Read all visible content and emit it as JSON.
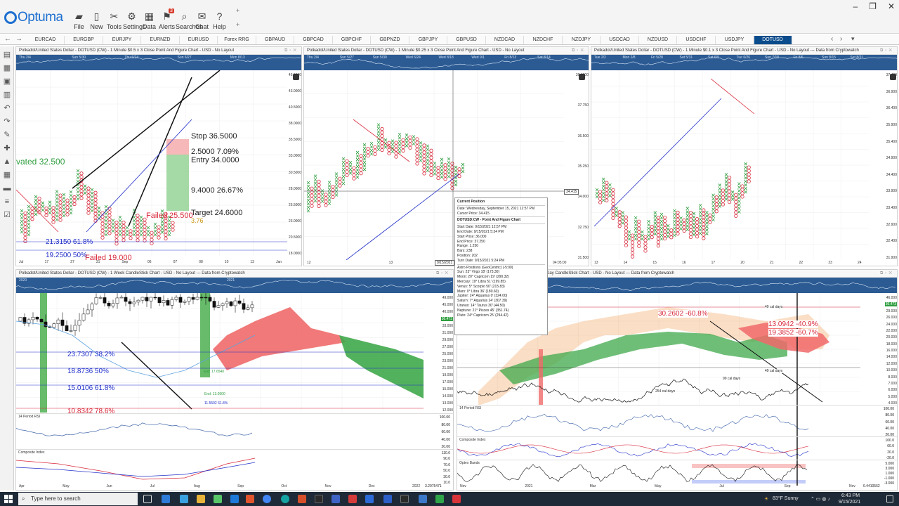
{
  "app": {
    "logo_text": "Optuma",
    "toolbar": [
      {
        "label": "File",
        "icon": "folder-icon"
      },
      {
        "label": "New",
        "icon": "page-icon"
      },
      {
        "label": "Tools",
        "icon": "tools-icon"
      },
      {
        "label": "Settings",
        "icon": "gear-icon"
      },
      {
        "label": "Data",
        "icon": "data-icon"
      },
      {
        "label": "Alerts",
        "icon": "bell-icon",
        "badge": "3"
      },
      {
        "label": "Searches",
        "icon": "search-icon"
      },
      {
        "label": "Chat",
        "icon": "chat-icon"
      },
      {
        "label": "Help",
        "icon": "help-icon"
      }
    ],
    "plus_a": "+",
    "plus_b": "+",
    "window_controls": [
      "–",
      "❐",
      "✕"
    ]
  },
  "tabs": [
    "EURCAD",
    "EURGBP",
    "EURJPY",
    "EURNZD",
    "EURUSD",
    "Forex RRG",
    "GBPAUD",
    "GBPCAD",
    "GBPCHF",
    "GBPNZD",
    "GBPJPY",
    "GBPUSD",
    "NZDCAD",
    "NZDCHF",
    "NZDJPY",
    "USDCAD",
    "NZDUSD",
    "USDCHF",
    "USDJPY",
    "DOTUSD"
  ],
  "active_tab": "DOTUSD",
  "panels": {
    "p1": {
      "title": "Polkadot/United States Dollar - DOTUSD (CW) - 1 Minute $0.5 x 3 Close Point And Figure Chart - USD - No Layout",
      "nav_dates": [
        "Thu 2/4",
        "Sun 5/30",
        "Thu 6/24",
        "Sun 6/27",
        "Mon 8/13"
      ],
      "yticks": [
        "45.0000",
        "43.0000",
        "40.5000",
        "38.0000",
        "35.5000",
        "33.0000",
        "30.5000",
        "28.0000",
        "25.5000",
        "23.0000",
        "20.5000",
        "18.0000"
      ],
      "xticks": [
        "Jul",
        "17",
        "27",
        "31",
        "Sep",
        "06",
        "07",
        "08",
        "10",
        "13",
        "Jan"
      ],
      "annotations": {
        "stop": "Stop  36.5000",
        "risk": "2.5000  7.09%",
        "entry": "Entry  34.0000",
        "reward": "9.4000  26.67%",
        "target": "Target  24.6000",
        "failed_a": "Failed 25.500",
        "small_val": "3.76",
        "activated": "vated 32.500",
        "fib_a": "21.3150   61.8%",
        "fib_b": "19.2500   50%",
        "failed_b": "Failed 19.000"
      }
    },
    "p2": {
      "title": "Polkadot/United States Dollar - DOTUSD (CW) - 1 Minute $0.25 x 3 Close Point And Figure Chart - USD - No Layout",
      "nav_dates": [
        "Thu 2/4",
        "Sun 5/27",
        "Sun 5/30",
        "Wed 6/24",
        "Wed 8/18",
        "Wed 9/1",
        "Fri 8/13",
        "Sat 8/14"
      ],
      "yticks": [
        "39.0000",
        "37.750",
        "36.500",
        "35.250",
        "34.000",
        "32.750",
        "31.500"
      ],
      "price_tag": "34.415",
      "xticks": [
        "12",
        "13",
        "14",
        "04:05:00"
      ],
      "date_tag": "9/15/2021"
    },
    "p3": {
      "title": "Polkadot/United States Dollar - DOTUSD (CW) - 1 Minute $0.1 x 3 Close Point And Figure Chart - USD - No Layout --- Data from Cryptowatch",
      "nav_dates": [
        "Tue 2/2",
        "Mon 2/8",
        "Fri 5/28",
        "Sat 5/31",
        "Sat 6/5",
        "Tue 6/26",
        "Sun 7/18",
        "Fri 8/6",
        "Sun 8/15",
        "Sat 8/21"
      ],
      "yticks": [
        "37.400",
        "36.900",
        "36.400",
        "35.900",
        "35.400",
        "34.900",
        "34.400",
        "33.900",
        "33.400",
        "32.900",
        "32.400",
        "31.900"
      ],
      "xticks": [
        "13",
        "14",
        "15",
        "16",
        "17",
        "20",
        "21",
        "22",
        "23",
        "24"
      ]
    },
    "p4": {
      "title": "Polkadot/United States Dollar - DOTUSD (CW) - 1 Week CandleStick Chart - USD - No Layout --- Data from Cryptowatch",
      "nav_dates": [
        "2020",
        "2021"
      ],
      "yticks": [
        "49.000",
        "45.000",
        "40.000",
        "36.473",
        "33.000",
        "31.000",
        "29.000",
        "27.000",
        "25.000",
        "23.000",
        "21.000",
        "19.000",
        "17.000",
        "15.000",
        "14.000",
        "13.000",
        "12.000"
      ],
      "price_tag": "36.473",
      "annotations": {
        "fib1": "23.7307   38.2%",
        "fib2": "18.8736   50%",
        "fib3": "15.0106   61.8%",
        "fib4": "10.8342   78.6%",
        "ext": "Ext: 17.6540",
        "end": "End: 13.0900",
        "ret": "11.5592   61.8%"
      },
      "rsi_label": "14 Period RSI",
      "rsi_ticks": [
        "100.00",
        "80.00",
        "60.00",
        "40.00",
        "20.00"
      ],
      "ci_label": "Composite Index",
      "ci_ticks": [
        "110.0",
        "90.0",
        "70.0",
        "50.0",
        "30.0",
        "10.0"
      ],
      "xticks": [
        "Apr",
        "May",
        "Jun",
        "Jul",
        "Aug",
        "Sep",
        "Oct",
        "Nov",
        "Dec",
        "2022"
      ],
      "footer_value": "3.2075471"
    },
    "p5": {
      "title": "1 Day CandleStick Chart - USD - No Layout --- Data from Cryptowatch",
      "nav_dates": [
        "2021"
      ],
      "yticks": [
        "46.000",
        "36.473",
        "29.000",
        "26.000",
        "24.000",
        "22.000",
        "20.000",
        "18.000",
        "16.000",
        "14.000",
        "12.000",
        "10.000",
        "8.000",
        "7.000",
        "6.000",
        "5.000",
        "4.000"
      ],
      "price_tag": "36.473",
      "annotations": {
        "ret_a": "30.2602  -60.8%",
        "ret_b": "13.0942  -40.9%",
        "ret_c": "19.3852  -60.7%",
        "days_a": "49 cal days",
        "days_b": "49 cal days",
        "days_c": "99 cal days",
        "days_d": "254 cal days"
      },
      "rsi_label": "14 Period RSI",
      "rsi_ticks": [
        "100.00",
        "80.00",
        "60.00",
        "40.00",
        "20.00"
      ],
      "ci_label": "Composite Index",
      "ci_ticks": [
        "100.0",
        "60.0",
        "20.0",
        "-20.0"
      ],
      "optex_label": "Optex Bands",
      "optex_ticks": [
        "5.000",
        "3.000",
        "1.000",
        "-1.000",
        "-3.000"
      ],
      "xticks": [
        "Nov",
        "2021",
        "Mar",
        "May",
        "Jul",
        "Sep",
        "Nov"
      ],
      "footer_value": "0.4410562"
    }
  },
  "popup": {
    "header": "Current Position",
    "date": "Date: Wednesday, September 15, 2021 12:57 PM",
    "cursor": "Cursor Price: 34.415",
    "chart": "DOTUSD:CW - Point And Figure Chart",
    "lines": [
      "Start Date: 9/15/2021 12:57 PM",
      "End Date: 9/15/2021 5:34 PM",
      "Start Price: 36.000",
      "End Price: 37.250",
      "Range: 1.250",
      "Bars: 238",
      "Position: 202",
      "Turn Date: 9/15/2021 5:24 PM"
    ],
    "astro_header": "Astro Positions (GeoCentric) (-5:00)",
    "astro": [
      "Sun: 23° Virgo 18' (173.30)",
      "Moon: 20° Capricorn 19' (290.32)",
      "Mercury: 19° Libra 51' (199.85)",
      "Venus: 5° Scorpio 50' (215.83)",
      "Mars: 0° Libra 36' (180.60)",
      "Jupiter: 24° Aquarius 0' (324.00)",
      "Saturn: 7° Aquarius 24' (307.39)",
      "Uranus: 14° Taurus 30' (44.50)",
      "Neptune: 21° Pisces 45' (351.74)",
      "Pluto: 24° Capricorn 25' (294.42)"
    ]
  },
  "taskbar": {
    "search_placeholder": "Type here to search",
    "weather": "83°F  Sunny",
    "time": "6:43 PM",
    "date": "9/15/2021"
  },
  "colors": {
    "x_mark": "#2f9e3f",
    "o_mark": "#d8283a",
    "trend": "#2230c9",
    "nav_band": "#2c5b93",
    "accent": "#0b4c8c"
  }
}
